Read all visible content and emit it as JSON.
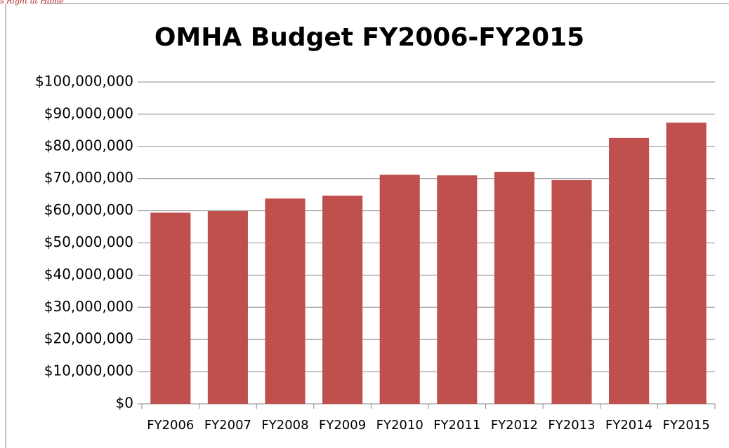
{
  "header": {
    "logo_text": "s Right at Home"
  },
  "chart_data": {
    "type": "bar",
    "title": "OMHA Budget FY2006-FY2015",
    "categories": [
      "FY2006",
      "FY2007",
      "FY2008",
      "FY2009",
      "FY2010",
      "FY2011",
      "FY2012",
      "FY2013",
      "FY2014",
      "FY2015"
    ],
    "values": [
      59400000,
      59900000,
      63800000,
      64700000,
      71200000,
      71000000,
      72100000,
      69500000,
      82600000,
      87400000
    ],
    "color": "#c0504d",
    "ylim": [
      0,
      100000000
    ],
    "yticks": [
      {
        "value": 0,
        "label": "$0"
      },
      {
        "value": 10000000,
        "label": "$10,000,000"
      },
      {
        "value": 20000000,
        "label": "$20,000,000"
      },
      {
        "value": 30000000,
        "label": "$30,000,000"
      },
      {
        "value": 40000000,
        "label": "$40,000,000"
      },
      {
        "value": 50000000,
        "label": "$50,000,000"
      },
      {
        "value": 60000000,
        "label": "$60,000,000"
      },
      {
        "value": 70000000,
        "label": "$70,000,000"
      },
      {
        "value": 80000000,
        "label": "$80,000,000"
      },
      {
        "value": 90000000,
        "label": "$90,000,000"
      },
      {
        "value": 100000000,
        "label": "$100,000,000"
      }
    ],
    "grid": true
  }
}
